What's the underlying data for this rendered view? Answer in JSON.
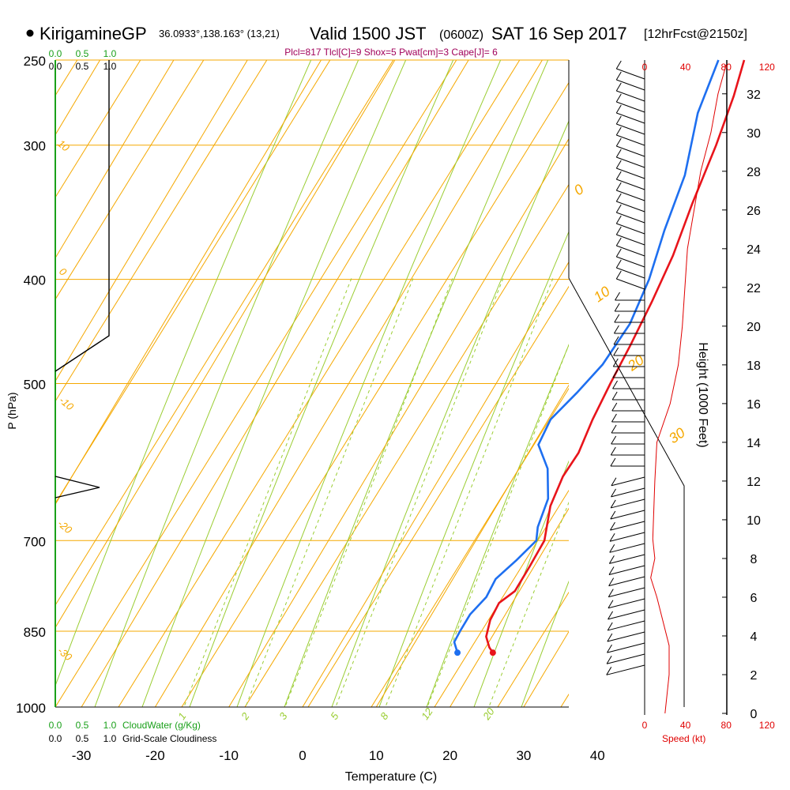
{
  "header": {
    "station": "KirigamineGP",
    "coords": "36.0933°,138.163° (13,21)",
    "valid": "Valid 1500 JST",
    "zulu": "(0600Z)",
    "date": "SAT 16 Sep 2017",
    "forecast": "[12hrFcst@2150z]",
    "indices": "Plcl=817 Tlcl[C]=9 Shox=5 Pwat[cm]=3 Cape[J]= 6"
  },
  "colors": {
    "temperature": "#e8141b",
    "dewpoint": "#1e6ff0",
    "isotherm_isobar": "#f5a800",
    "mixing_ratio": "#9acd32",
    "cloud": "#1aa01a",
    "indices": "#a0005a",
    "speed": "#e00000"
  },
  "chart_data": {
    "type": "line",
    "title": "",
    "xlabel": "Temperature (C)",
    "ylabel": "P (hPa)",
    "xlim": [
      -34,
      36
    ],
    "x_ticks": [
      "-30",
      "-20",
      "-10",
      "0",
      "10",
      "20",
      "30",
      "40"
    ],
    "y_ticks": [
      "250",
      "300",
      "400",
      "500",
      "700",
      "850",
      "1000"
    ],
    "y_scale": "log",
    "ylim": [
      1000,
      250
    ],
    "series": [],
    "temperature": [
      {
        "p": 250,
        "x": 7.4
      },
      {
        "p": 270,
        "x": 8.9
      },
      {
        "p": 300,
        "x": 10.5
      },
      {
        "p": 340,
        "x": 12.0
      },
      {
        "p": 380,
        "x": 13.6
      },
      {
        "p": 420,
        "x": 14.5
      },
      {
        "p": 460,
        "x": 15.1
      },
      {
        "p": 500,
        "x": 15.5
      },
      {
        "p": 540,
        "x": 16.0
      },
      {
        "p": 580,
        "x": 16.8
      },
      {
        "p": 610,
        "x": 16.6
      },
      {
        "p": 650,
        "x": 17.3
      },
      {
        "p": 700,
        "x": 19.3
      },
      {
        "p": 740,
        "x": 19.4
      },
      {
        "p": 780,
        "x": 19.4
      },
      {
        "p": 800,
        "x": 18.2
      },
      {
        "p": 830,
        "x": 18.4
      },
      {
        "p": 860,
        "x": 19.2
      },
      {
        "p": 880,
        "x": 20.5
      },
      {
        "p": 890,
        "x": 21.4
      }
    ],
    "dewpoint": [
      {
        "p": 250,
        "x": 3.9
      },
      {
        "p": 280,
        "x": 5.4
      },
      {
        "p": 320,
        "x": 8.7
      },
      {
        "p": 360,
        "x": 10.4
      },
      {
        "p": 400,
        "x": 12.3
      },
      {
        "p": 440,
        "x": 13.3
      },
      {
        "p": 480,
        "x": 12.9
      },
      {
        "p": 510,
        "x": 11.7
      },
      {
        "p": 540,
        "x": 10.3
      },
      {
        "p": 570,
        "x": 10.7
      },
      {
        "p": 600,
        "x": 13.9
      },
      {
        "p": 640,
        "x": 16.4
      },
      {
        "p": 680,
        "x": 17.3
      },
      {
        "p": 700,
        "x": 18.2
      },
      {
        "p": 730,
        "x": 17.1
      },
      {
        "p": 760,
        "x": 15.8
      },
      {
        "p": 790,
        "x": 16.0
      },
      {
        "p": 820,
        "x": 15.2
      },
      {
        "p": 850,
        "x": 15.2
      },
      {
        "p": 870,
        "x": 15.3
      },
      {
        "p": 890,
        "x": 16.6
      }
    ],
    "cloud_axis": {
      "label": "CloudWater (g/Kg)",
      "ticks": [
        "0.0",
        "0.5",
        "1.0"
      ],
      "cloudiness_label": "Grid-Scale Cloudiness",
      "cloudiness_ticks": [
        "0.0",
        "0.5",
        "1.0"
      ]
    },
    "height_axis": {
      "label": "Height (1000 Feet)",
      "ticks": [
        "0",
        "2",
        "4",
        "6",
        "8",
        "10",
        "12",
        "14",
        "16",
        "18",
        "20",
        "22",
        "24",
        "26",
        "28",
        "30",
        "32"
      ],
      "range": [
        0,
        33.5
      ]
    },
    "speed_axis": {
      "label": "Speed (kt)",
      "ticks": [
        "0",
        "40",
        "80",
        "120"
      ],
      "range": [
        0,
        120
      ]
    },
    "isotherm_labels": [
      "0",
      "10",
      "20",
      "30"
    ],
    "dry_adiabat_labels": [
      "10",
      "0",
      "-10",
      "-20",
      "-30"
    ],
    "mixing_ratio_labels": [
      "1",
      "2",
      "3",
      "5",
      "8",
      "12",
      "20"
    ],
    "wind_speed_profile": [
      {
        "h": 0,
        "v": 20
      },
      {
        "h": 1,
        "v": 22
      },
      {
        "h": 2,
        "v": 24
      },
      {
        "h": 3.5,
        "v": 24
      },
      {
        "h": 6,
        "v": 12
      },
      {
        "h": 7,
        "v": 6
      },
      {
        "h": 8,
        "v": 10
      },
      {
        "h": 9,
        "v": 8
      },
      {
        "h": 12,
        "v": 10
      },
      {
        "h": 14,
        "v": 12
      },
      {
        "h": 16,
        "v": 25
      },
      {
        "h": 18,
        "v": 33
      },
      {
        "h": 20,
        "v": 37
      },
      {
        "h": 24,
        "v": 42
      },
      {
        "h": 28,
        "v": 55
      },
      {
        "h": 30,
        "v": 65
      },
      {
        "h": 32,
        "v": 72
      },
      {
        "h": 33.5,
        "v": 80
      }
    ]
  }
}
